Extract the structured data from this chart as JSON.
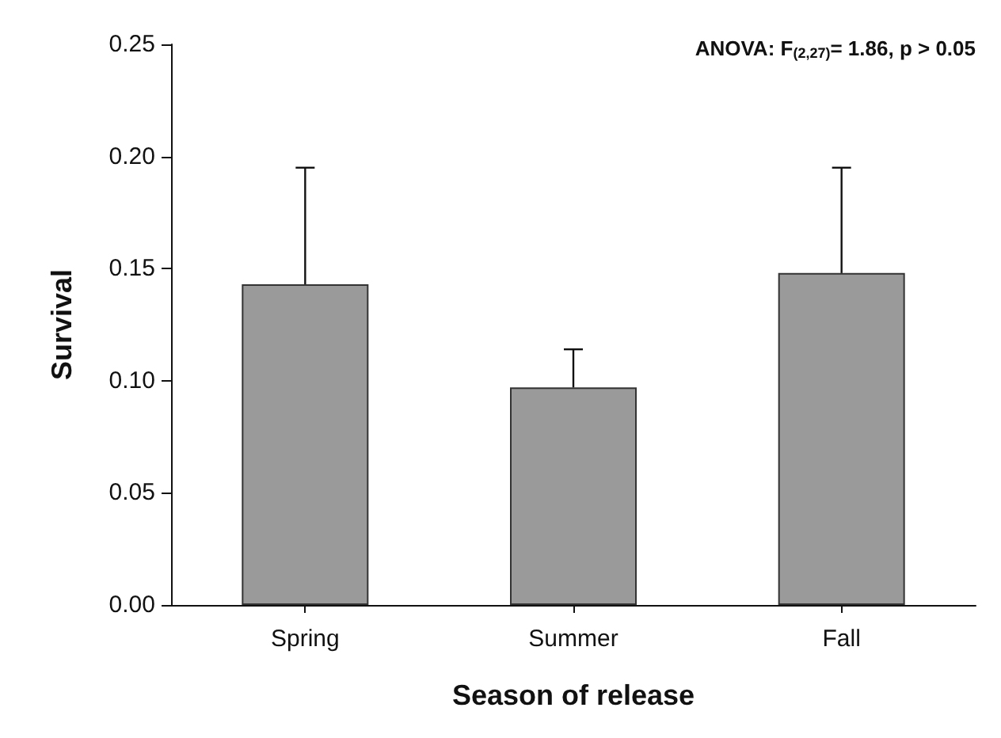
{
  "chart_data": {
    "type": "bar",
    "xlabel": "Season of release",
    "ylabel": "Survival",
    "annotations": [
      "ANOVA: F$_{(2,27)}$= 1.86, p > 0.05"
    ],
    "categories": [
      "Spring",
      "Summer",
      "Fall"
    ],
    "values": [
      0.143,
      0.097,
      0.148
    ],
    "errors": [
      [
        0.143,
        0.195
      ],
      [
        0.097,
        0.114
      ],
      [
        0.148,
        0.195
      ]
    ],
    "color": "#9a9a9a",
    "ylim": [
      0,
      0.25
    ],
    "yticks": [
      {
        "value": 0,
        "label": "0.00"
      },
      {
        "value": 0.05,
        "label": "0.05"
      },
      {
        "value": 0.1,
        "label": "0.10"
      },
      {
        "value": 0.15,
        "label": "0.15"
      },
      {
        "value": 0.2,
        "label": "0.20"
      },
      {
        "value": 0.25,
        "label": "0.25"
      }
    ],
    "grid": false
  }
}
